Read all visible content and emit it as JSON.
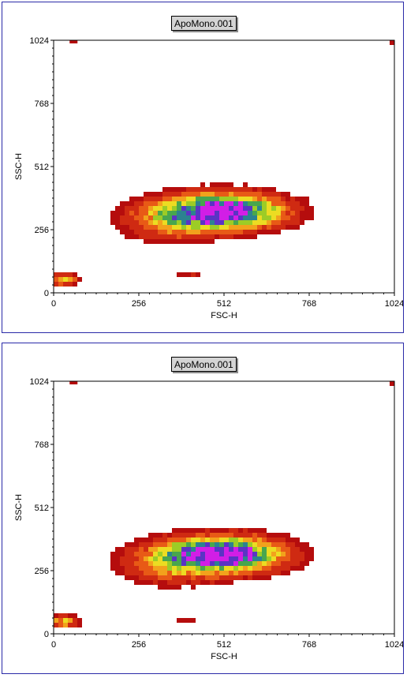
{
  "chart_data": [
    {
      "type": "heatmap",
      "title": "ApoMono.001",
      "xlabel": "FSC-H",
      "ylabel": "SSC-H",
      "xlim": [
        0,
        1024
      ],
      "ylim": [
        0,
        1024
      ],
      "xticks": [
        "0",
        "256",
        "512",
        "768",
        "1024"
      ],
      "yticks": [
        "0",
        "256",
        "512",
        "768",
        "1024"
      ],
      "color_scale": [
        "#b50d0d",
        "#cf2a12",
        "#e85a16",
        "#f2a21c",
        "#ecdc22",
        "#9ccc26",
        "#48a64e",
        "#2c8290",
        "#5a34c4",
        "#d21ee6"
      ],
      "populations": [
        {
          "name_hidden": true,
          "cx": 520,
          "cy": 330,
          "sx": 195,
          "sy": 80,
          "density": 1.0
        },
        {
          "name_hidden": true,
          "cx": 330,
          "cy": 290,
          "sx": 160,
          "sy": 95,
          "density": 0.35
        },
        {
          "name_hidden": true,
          "cx": 30,
          "cy": 55,
          "sx": 50,
          "sy": 30,
          "density": 0.55
        },
        {
          "name_hidden": true,
          "cx": 400,
          "cy": 68,
          "sx": 55,
          "sy": 14,
          "density": 0.28
        }
      ],
      "peak": {
        "x": 512,
        "y": 320
      }
    },
    {
      "type": "heatmap",
      "title": "ApoMono.001",
      "xlabel": "FSC-H",
      "ylabel": "SSC-H",
      "xlim": [
        0,
        1024
      ],
      "ylim": [
        0,
        1024
      ],
      "xticks": [
        "0",
        "256",
        "512",
        "768",
        "1024"
      ],
      "yticks": [
        "0",
        "256",
        "512",
        "768",
        "1024"
      ],
      "color_scale": [
        "#b50d0d",
        "#cf2a12",
        "#e85a16",
        "#f2a21c",
        "#ecdc22",
        "#9ccc26",
        "#48a64e",
        "#2c8290",
        "#5a34c4",
        "#d21ee6"
      ],
      "populations": [
        {
          "name_hidden": true,
          "cx": 520,
          "cy": 322,
          "sx": 195,
          "sy": 80,
          "density": 1.0
        },
        {
          "name_hidden": true,
          "cx": 330,
          "cy": 280,
          "sx": 160,
          "sy": 95,
          "density": 0.35
        },
        {
          "name_hidden": true,
          "cx": 30,
          "cy": 50,
          "sx": 50,
          "sy": 30,
          "density": 0.55
        },
        {
          "name_hidden": true,
          "cx": 400,
          "cy": 62,
          "sx": 55,
          "sy": 14,
          "density": 0.28
        }
      ],
      "peak": {
        "x": 512,
        "y": 310
      }
    }
  ]
}
